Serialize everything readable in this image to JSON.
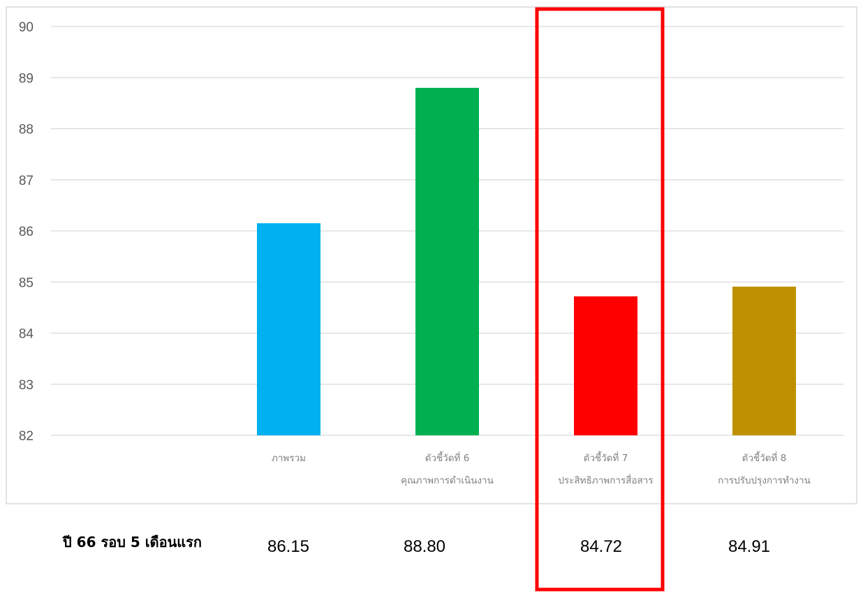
{
  "chart_data": {
    "type": "bar",
    "title": "",
    "xlabel": "",
    "ylabel": "",
    "ylim": [
      82,
      90
    ],
    "yticks": [
      82,
      83,
      84,
      85,
      86,
      87,
      88,
      89,
      90
    ],
    "grid": true,
    "legend": "none",
    "categories": [
      {
        "lines": [
          "ภาพรวม"
        ]
      },
      {
        "lines": [
          "ตัวชี้วัดที่ 6",
          "คุณภาพการดำเนินงาน"
        ]
      },
      {
        "lines": [
          "ตัวชี้วัดที่ 7",
          "ประสิทธิภาพการสื่อสาร"
        ]
      },
      {
        "lines": [
          "ตัวชี้วัดที่ 8",
          "การปรับปรุงการทำงาน"
        ]
      }
    ],
    "values": [
      86.15,
      88.8,
      84.72,
      84.91
    ],
    "bar_colors": [
      "#00b0f0",
      "#00b050",
      "#ff0000",
      "#bf9000"
    ],
    "highlighted_category_index": 2,
    "highlight_color": "#ff0000"
  },
  "data_table": {
    "row_label": "ปี 66 รอบ 5 เดือนแรก",
    "values": [
      "86.15",
      "88.80",
      "84.72",
      "84.91"
    ]
  }
}
